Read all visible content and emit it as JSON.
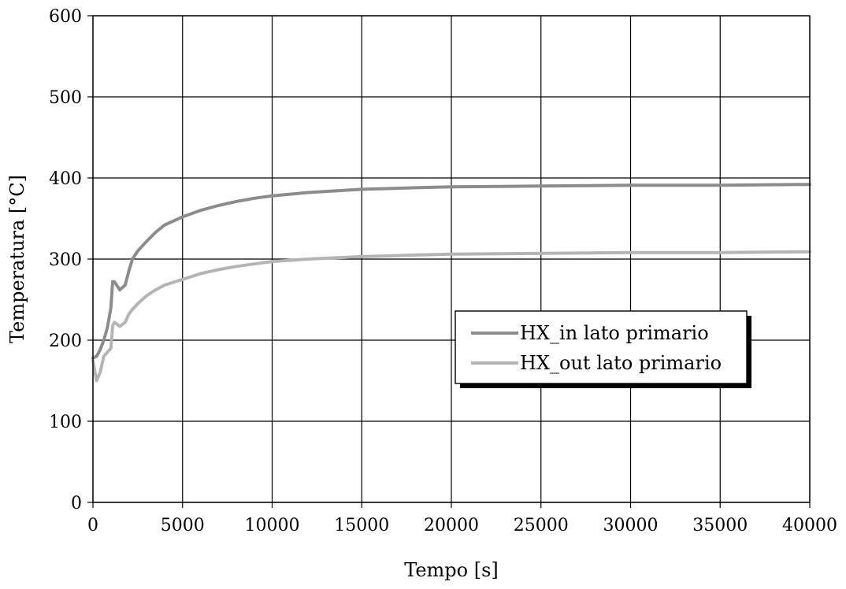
{
  "chart_data": {
    "type": "line",
    "title": "",
    "xlabel": "Tempo [s]",
    "ylabel": "Temperatura [°C]",
    "xlim": [
      0,
      40000
    ],
    "ylim": [
      0,
      600
    ],
    "xticks": [
      0,
      5000,
      10000,
      15000,
      20000,
      25000,
      30000,
      35000,
      40000
    ],
    "yticks": [
      0,
      100,
      200,
      300,
      400,
      500,
      600
    ],
    "grid": true,
    "legend_position": "center-right",
    "series": [
      {
        "name": "HX_in lato primario",
        "color": "#8c8c8c",
        "x": [
          0,
          200,
          400,
          600,
          800,
          1000,
          1100,
          1200,
          1500,
          1800,
          2000,
          2200,
          2500,
          3000,
          3500,
          4000,
          5000,
          6000,
          7000,
          8000,
          9000,
          10000,
          12000,
          15000,
          18000,
          20000,
          25000,
          30000,
          35000,
          40000
        ],
        "y": [
          178,
          180,
          188,
          200,
          215,
          240,
          272,
          272,
          262,
          268,
          285,
          300,
          310,
          322,
          333,
          342,
          352,
          360,
          366,
          371,
          375,
          378,
          382,
          386,
          388,
          389,
          390,
          391,
          391,
          392
        ]
      },
      {
        "name": "HX_out lato primario",
        "color": "#b4b4b4",
        "x": [
          0,
          200,
          400,
          600,
          800,
          1000,
          1100,
          1200,
          1500,
          1800,
          2000,
          2200,
          2500,
          3000,
          3500,
          4000,
          5000,
          6000,
          7000,
          8000,
          9000,
          10000,
          12000,
          15000,
          18000,
          20000,
          25000,
          30000,
          35000,
          40000
        ],
        "y": [
          175,
          150,
          160,
          180,
          185,
          190,
          218,
          222,
          217,
          222,
          232,
          238,
          245,
          255,
          262,
          268,
          275,
          282,
          287,
          291,
          294,
          297,
          300,
          303,
          305,
          306,
          307,
          308,
          308,
          309
        ]
      }
    ]
  }
}
